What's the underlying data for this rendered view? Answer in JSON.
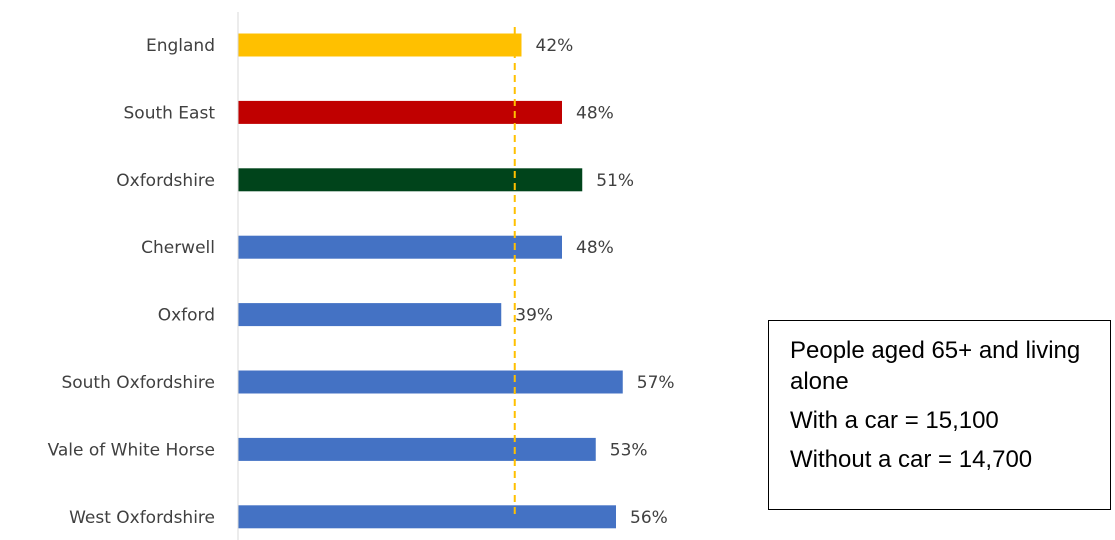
{
  "chart_data": {
    "type": "bar",
    "orientation": "horizontal",
    "categories": [
      "England",
      "South East",
      "Oxfordshire",
      "Cherwell",
      "Oxford",
      "South Oxfordshire",
      "Vale of White Horse",
      "West Oxfordshire"
    ],
    "values": [
      42,
      48,
      51,
      48,
      39,
      57,
      53,
      56
    ],
    "value_labels": [
      "42%",
      "48%",
      "51%",
      "48%",
      "39%",
      "57%",
      "53%",
      "56%"
    ],
    "bar_colors": [
      "#FFC000",
      "#C00000",
      "#00441B",
      "#4472C4",
      "#4472C4",
      "#4472C4",
      "#4472C4",
      "#4472C4"
    ],
    "reference_line": {
      "value": 41,
      "color": "#FFC000",
      "style": "dashed"
    },
    "xlim": [
      0,
      85
    ],
    "grid": false
  },
  "info_box": {
    "title": "People aged 65+ and living alone",
    "with_car": "With a car = 15,100",
    "without_car": "Without a car = 14,700"
  }
}
